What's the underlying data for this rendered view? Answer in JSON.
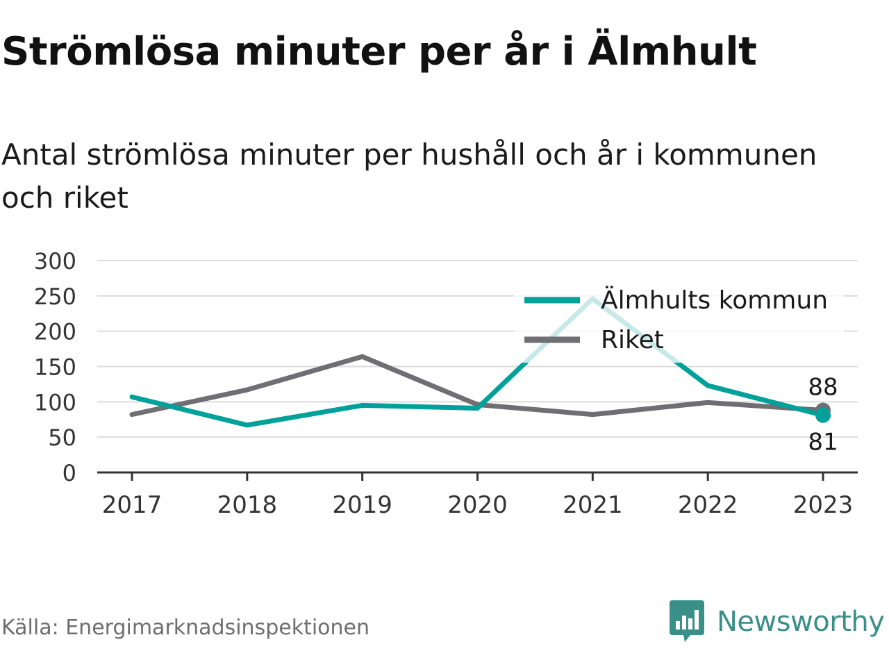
{
  "header": {
    "title": "Strömlösa minuter per år i Älmhult",
    "subtitle": "Antal strömlösa minuter per hushåll och år i kommunen och riket"
  },
  "footer": {
    "source": "Källa: Energimarknadsinspektionen",
    "brand": "Newsworthy",
    "brand_icon": "chart-bubble-icon"
  },
  "colors": {
    "kommun": "#00a19a",
    "riket": "#6e6e73",
    "grid": "#dcdcdc",
    "axis": "#333333",
    "brand": "#3a8f88"
  },
  "chart_data": {
    "type": "line",
    "title": "Strömlösa minuter per år i Älmhult",
    "subtitle": "Antal strömlösa minuter per hushåll och år i kommunen och riket",
    "categories": [
      "2017",
      "2018",
      "2019",
      "2020",
      "2021",
      "2022",
      "2023"
    ],
    "ylim": [
      0,
      300
    ],
    "yticks": [
      0,
      50,
      100,
      150,
      200,
      250,
      300
    ],
    "grid": true,
    "legend_position": "top-right",
    "series": [
      {
        "name": "Älmhults kommun",
        "color": "#00a19a",
        "values": [
          107,
          67,
          95,
          91,
          246,
          123,
          81
        ]
      },
      {
        "name": "Riket",
        "color": "#6e6e73",
        "values": [
          82,
          117,
          164,
          96,
          82,
          99,
          88
        ]
      }
    ],
    "end_labels": [
      {
        "series": "Riket",
        "value": "88",
        "position": "above"
      },
      {
        "series": "Älmhults kommun",
        "value": "81",
        "position": "below"
      }
    ]
  }
}
